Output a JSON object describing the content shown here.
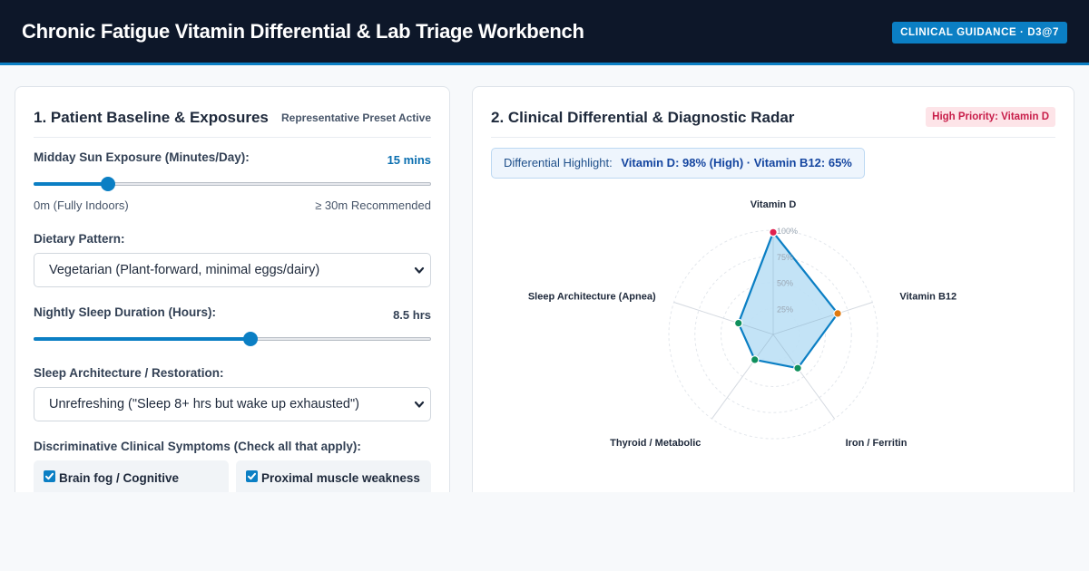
{
  "header": {
    "title": "Chronic Fatigue Vitamin Differential & Lab Triage Workbench",
    "badge": "CLINICAL GUIDANCE · D3@7"
  },
  "left_panel": {
    "title": "1. Patient Baseline & Exposures",
    "preset_tag": "Representative Preset Active",
    "sun": {
      "label": "Midday Sun Exposure (Minutes/Day):",
      "value_text": "15 mins",
      "value": 15,
      "min": 0,
      "max": 85,
      "min_label": "0m (Fully Indoors)",
      "max_label": "≥ 30m Recommended"
    },
    "diet": {
      "label": "Dietary Pattern:",
      "selected": "Vegetarian (Plant-forward, minimal eggs/dairy)"
    },
    "sleep_duration": {
      "label": "Nightly Sleep Duration (Hours):",
      "value_text": "8.5 hrs",
      "value": 8.5,
      "min": 0,
      "max": 15.5
    },
    "sleep_architecture": {
      "label": "Sleep Architecture / Restoration:",
      "selected": "Unrefreshing (\"Sleep 8+ hrs but wake up exhausted\")"
    },
    "symptoms": {
      "label": "Discriminative Clinical Symptoms (Check all that apply):",
      "items": [
        {
          "label": "Brain fog / Cognitive",
          "checked": true
        },
        {
          "label": "Proximal muscle weakness",
          "checked": true
        }
      ]
    }
  },
  "right_panel": {
    "title": "2. Clinical Differential & Diagnostic Radar",
    "priority_badge": "High Priority: Vitamin D",
    "highlight": {
      "lead": "Differential Highlight:",
      "text": "Vitamin D: 98% (High) · Vitamin B12: 65%"
    },
    "radar": {
      "ring_labels": [
        "25%",
        "50%",
        "75%",
        "100%"
      ],
      "axes": [
        {
          "label": "Vitamin D",
          "value": 98,
          "color": "#e0214f"
        },
        {
          "label": "Vitamin B12",
          "value": 65,
          "color": "#e07a10"
        },
        {
          "label": "Iron / Ferritin",
          "value": 40,
          "color": "#0f8f5c"
        },
        {
          "label": "Thyroid / Metabolic",
          "value": 30,
          "color": "#0f8f5c"
        },
        {
          "label": "Sleep Architecture (Apnea)",
          "value": 35,
          "color": "#0f8f5c"
        }
      ],
      "fill_color": "#bde0f5",
      "stroke_color": "#0b7fc4"
    }
  }
}
